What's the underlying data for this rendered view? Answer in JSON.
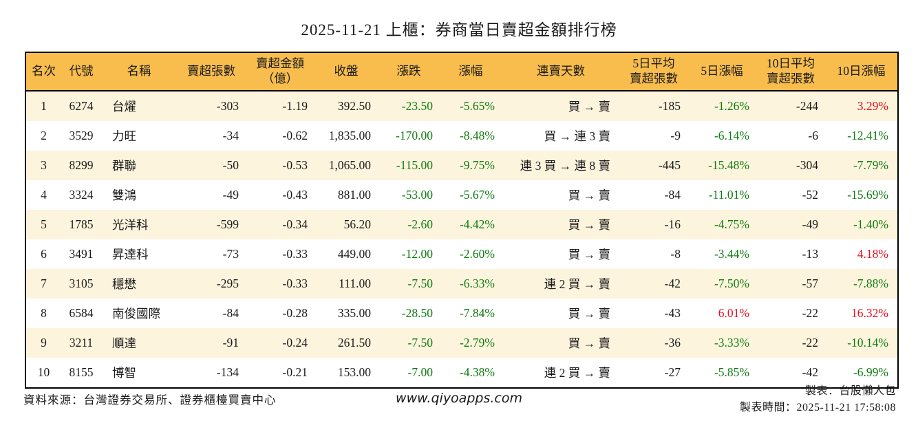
{
  "title": "2025-11-21 上櫃：券商當日賣超金額排行榜",
  "colors": {
    "header_bg": "#f8bd4d",
    "row_alt_bg": "#fdf4dd",
    "row_bg": "#ffffff",
    "positive": "#e4101e",
    "negative": "#0e7c10",
    "border": "#000000"
  },
  "chart_data": {
    "type": "table",
    "title": "2025-11-21 上櫃：券商當日賣超金額排行榜",
    "columns": [
      {
        "key": "rank",
        "label": "名次",
        "align": "center"
      },
      {
        "key": "code",
        "label": "代號",
        "align": "center"
      },
      {
        "key": "name",
        "label": "名稱",
        "align": "left"
      },
      {
        "key": "sell_lots",
        "label": "賣超張數",
        "align": "right"
      },
      {
        "key": "sell_amount",
        "label": "賣超金額\n（億）",
        "align": "right"
      },
      {
        "key": "close",
        "label": "收盤",
        "align": "right"
      },
      {
        "key": "change",
        "label": "漲跌",
        "align": "right",
        "colored": true
      },
      {
        "key": "change_pct",
        "label": "漲幅",
        "align": "right",
        "colored": true
      },
      {
        "key": "streak",
        "label": "連賣天數",
        "align": "right"
      },
      {
        "key": "avg5_lots",
        "label": "5日平均\n賣超張數",
        "align": "right"
      },
      {
        "key": "pct5",
        "label": "5日漲幅",
        "align": "right",
        "colored": true
      },
      {
        "key": "avg10_lots",
        "label": "10日平均\n賣超張數",
        "align": "right"
      },
      {
        "key": "pct10",
        "label": "10日漲幅",
        "align": "right",
        "colored": true
      }
    ],
    "rows": [
      [
        "1",
        "6274",
        "台燿",
        "-303",
        "-1.19",
        "392.50",
        "-23.50",
        "-5.65%",
        "買 → 賣",
        "-185",
        "-1.26%",
        "-244",
        "3.29%"
      ],
      [
        "2",
        "3529",
        "力旺",
        "-34",
        "-0.62",
        "1,835.00",
        "-170.00",
        "-8.48%",
        "買 → 連 3 賣",
        "-9",
        "-6.14%",
        "-6",
        "-12.41%"
      ],
      [
        "3",
        "8299",
        "群聯",
        "-50",
        "-0.53",
        "1,065.00",
        "-115.00",
        "-9.75%",
        "連 3 買 → 連 8 賣",
        "-445",
        "-15.48%",
        "-304",
        "-7.79%"
      ],
      [
        "4",
        "3324",
        "雙鴻",
        "-49",
        "-0.43",
        "881.00",
        "-53.00",
        "-5.67%",
        "買 → 賣",
        "-84",
        "-11.01%",
        "-52",
        "-15.69%"
      ],
      [
        "5",
        "1785",
        "光洋科",
        "-599",
        "-0.34",
        "56.20",
        "-2.60",
        "-4.42%",
        "買 → 賣",
        "-16",
        "-4.75%",
        "-49",
        "-1.40%"
      ],
      [
        "6",
        "3491",
        "昇達科",
        "-73",
        "-0.33",
        "449.00",
        "-12.00",
        "-2.60%",
        "買 → 賣",
        "-8",
        "-3.44%",
        "-13",
        "4.18%"
      ],
      [
        "7",
        "3105",
        "穩懋",
        "-295",
        "-0.33",
        "111.00",
        "-7.50",
        "-6.33%",
        "連 2 買 → 賣",
        "-42",
        "-7.50%",
        "-57",
        "-7.88%"
      ],
      [
        "8",
        "6584",
        "南俊國際",
        "-84",
        "-0.28",
        "335.00",
        "-28.50",
        "-7.84%",
        "買 → 賣",
        "-43",
        "6.01%",
        "-22",
        "16.32%"
      ],
      [
        "9",
        "3211",
        "順達",
        "-91",
        "-0.24",
        "261.50",
        "-7.50",
        "-2.79%",
        "買 → 賣",
        "-36",
        "-3.33%",
        "-22",
        "-10.14%"
      ],
      [
        "10",
        "8155",
        "博智",
        "-134",
        "-0.21",
        "153.00",
        "-7.00",
        "-4.38%",
        "連 2 買 → 賣",
        "-27",
        "-5.85%",
        "-42",
        "-6.99%"
      ]
    ]
  },
  "footer": {
    "source": "資料來源：台灣證券交易所、證券櫃檯買賣中心",
    "website": "www.qiyoapps.com",
    "maker": "製表：台股懶人包",
    "made_time": "製表時間：2025-11-21 17:58:08"
  }
}
